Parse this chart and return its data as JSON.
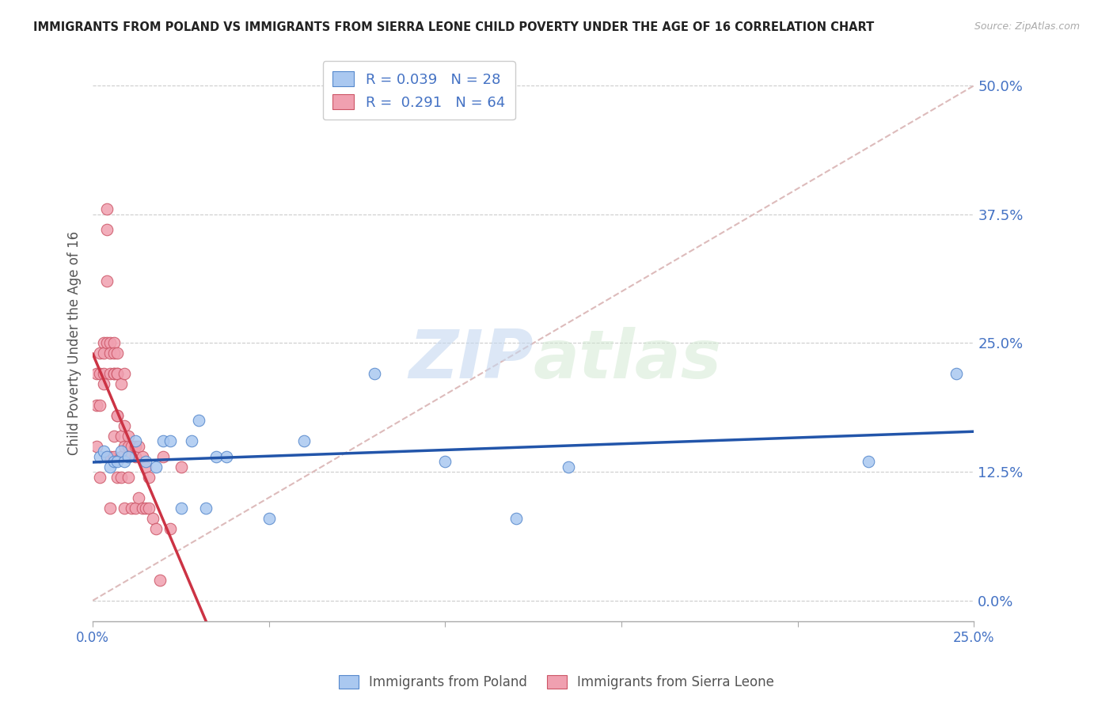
{
  "title": "IMMIGRANTS FROM POLAND VS IMMIGRANTS FROM SIERRA LEONE CHILD POVERTY UNDER THE AGE OF 16 CORRELATION CHART",
  "source": "Source: ZipAtlas.com",
  "ylabel": "Child Poverty Under the Age of 16",
  "ytick_values": [
    0.0,
    0.125,
    0.25,
    0.375,
    0.5
  ],
  "xtick_values": [
    0.0,
    0.05,
    0.1,
    0.15,
    0.2,
    0.25
  ],
  "xlim": [
    0.0,
    0.25
  ],
  "ylim": [
    -0.02,
    0.52
  ],
  "legend_poland_r": "0.039",
  "legend_poland_n": "28",
  "legend_sierra_r": "0.291",
  "legend_sierra_n": "64",
  "legend_label_poland": "Immigrants from Poland",
  "legend_label_sierra": "Immigrants from Sierra Leone",
  "color_poland": "#aac8f0",
  "color_poland_edge": "#5588cc",
  "color_poland_line": "#2255aa",
  "color_sierra": "#f0a0b0",
  "color_sierra_edge": "#cc5566",
  "color_sierra_line": "#cc3344",
  "color_diagonal": "#ddbbbb",
  "color_text_blue": "#4472c4",
  "color_grid": "#cccccc",
  "watermark_zip": "ZIP",
  "watermark_atlas": "atlas",
  "poland_x": [
    0.002,
    0.003,
    0.004,
    0.005,
    0.006,
    0.007,
    0.008,
    0.009,
    0.01,
    0.012,
    0.015,
    0.018,
    0.02,
    0.022,
    0.025,
    0.028,
    0.03,
    0.032,
    0.035,
    0.038,
    0.05,
    0.06,
    0.08,
    0.1,
    0.12,
    0.135,
    0.22,
    0.245
  ],
  "poland_y": [
    0.14,
    0.145,
    0.14,
    0.13,
    0.135,
    0.135,
    0.145,
    0.135,
    0.14,
    0.155,
    0.135,
    0.13,
    0.155,
    0.155,
    0.09,
    0.155,
    0.175,
    0.09,
    0.14,
    0.14,
    0.08,
    0.155,
    0.22,
    0.135,
    0.08,
    0.13,
    0.135,
    0.22
  ],
  "sierra_x": [
    0.001,
    0.001,
    0.001,
    0.002,
    0.002,
    0.002,
    0.002,
    0.003,
    0.003,
    0.003,
    0.003,
    0.004,
    0.004,
    0.004,
    0.004,
    0.004,
    0.005,
    0.005,
    0.005,
    0.005,
    0.005,
    0.006,
    0.006,
    0.006,
    0.006,
    0.006,
    0.006,
    0.007,
    0.007,
    0.007,
    0.007,
    0.007,
    0.007,
    0.008,
    0.008,
    0.008,
    0.008,
    0.009,
    0.009,
    0.009,
    0.009,
    0.01,
    0.01,
    0.01,
    0.01,
    0.011,
    0.011,
    0.012,
    0.012,
    0.012,
    0.013,
    0.013,
    0.014,
    0.014,
    0.015,
    0.015,
    0.016,
    0.016,
    0.017,
    0.018,
    0.019,
    0.02,
    0.022,
    0.025
  ],
  "sierra_y": [
    0.22,
    0.19,
    0.15,
    0.24,
    0.22,
    0.19,
    0.12,
    0.25,
    0.24,
    0.22,
    0.21,
    0.38,
    0.36,
    0.31,
    0.25,
    0.14,
    0.25,
    0.24,
    0.22,
    0.14,
    0.09,
    0.25,
    0.24,
    0.22,
    0.22,
    0.16,
    0.14,
    0.24,
    0.22,
    0.22,
    0.18,
    0.18,
    0.12,
    0.21,
    0.16,
    0.14,
    0.12,
    0.22,
    0.17,
    0.15,
    0.09,
    0.16,
    0.15,
    0.14,
    0.12,
    0.15,
    0.09,
    0.15,
    0.14,
    0.09,
    0.15,
    0.1,
    0.14,
    0.09,
    0.13,
    0.09,
    0.12,
    0.09,
    0.08,
    0.07,
    0.02,
    0.14,
    0.07,
    0.13
  ]
}
